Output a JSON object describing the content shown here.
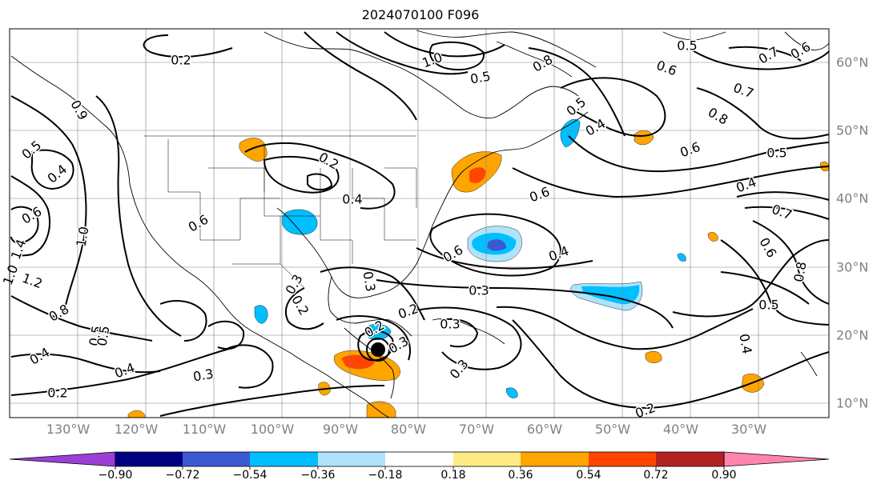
{
  "title": "2024070100 F096",
  "lon_labels": [
    "130°W",
    "120°W",
    "110°W",
    "100°W",
    "90°W",
    "80°W",
    "70°W",
    "60°W",
    "50°W",
    "40°W",
    "30°W"
  ],
  "lat_labels": [
    "60°N",
    "50°N",
    "40°N",
    "30°N",
    "20°N",
    "10°N"
  ],
  "colorbar": {
    "ticks": [
      "−0.90",
      "−0.72",
      "−0.54",
      "−0.36",
      "−0.18",
      "0.18",
      "0.36",
      "0.54",
      "0.72",
      "0.90"
    ],
    "colors": [
      "#9b3fd6",
      "#000080",
      "#3a5ad2",
      "#00bfff",
      "#aee3fb",
      "#ffffff",
      "#ffeb85",
      "#ffa500",
      "#ff4500",
      "#b22222",
      "#ff85ad"
    ]
  },
  "contour_labels": [
    {
      "text": "0.2"
    },
    {
      "text": "0.5"
    },
    {
      "text": "0.7"
    },
    {
      "text": "0.6"
    },
    {
      "text": "1.0"
    },
    {
      "text": "0.8"
    },
    {
      "text": "0.5"
    },
    {
      "text": "0.6"
    },
    {
      "text": "0.7"
    },
    {
      "text": "0.8"
    },
    {
      "text": "0.5"
    },
    {
      "text": "0.4"
    },
    {
      "text": "0.6"
    },
    {
      "text": "0.5"
    },
    {
      "text": "0.4"
    },
    {
      "text": "0.6"
    },
    {
      "text": "0.7"
    },
    {
      "text": "0.6"
    },
    {
      "text": "0.8"
    },
    {
      "text": "0.5"
    },
    {
      "text": "0.4"
    },
    {
      "text": "0.2"
    },
    {
      "text": "0.3"
    },
    {
      "text": "0.6"
    },
    {
      "text": "0.4"
    },
    {
      "text": "0.3"
    },
    {
      "text": "0.2"
    },
    {
      "text": "0.3"
    },
    {
      "text": "0.3"
    },
    {
      "text": "0.2"
    },
    {
      "text": "0.3"
    },
    {
      "text": "0.5"
    },
    {
      "text": "0.4"
    },
    {
      "text": "0.2"
    },
    {
      "text": "0.6"
    },
    {
      "text": "0.9"
    },
    {
      "text": "0.5"
    },
    {
      "text": "0.4"
    },
    {
      "text": "0.6"
    },
    {
      "text": "1.4"
    },
    {
      "text": "1.0"
    },
    {
      "text": "1.0"
    },
    {
      "text": "1.2"
    },
    {
      "text": "0.8"
    },
    {
      "text": "0.5"
    },
    {
      "text": "0.4"
    },
    {
      "text": "0.4"
    },
    {
      "text": "0.3"
    },
    {
      "text": "0.2"
    },
    {
      "text": "0.3"
    },
    {
      "text": "0.2"
    }
  ]
}
